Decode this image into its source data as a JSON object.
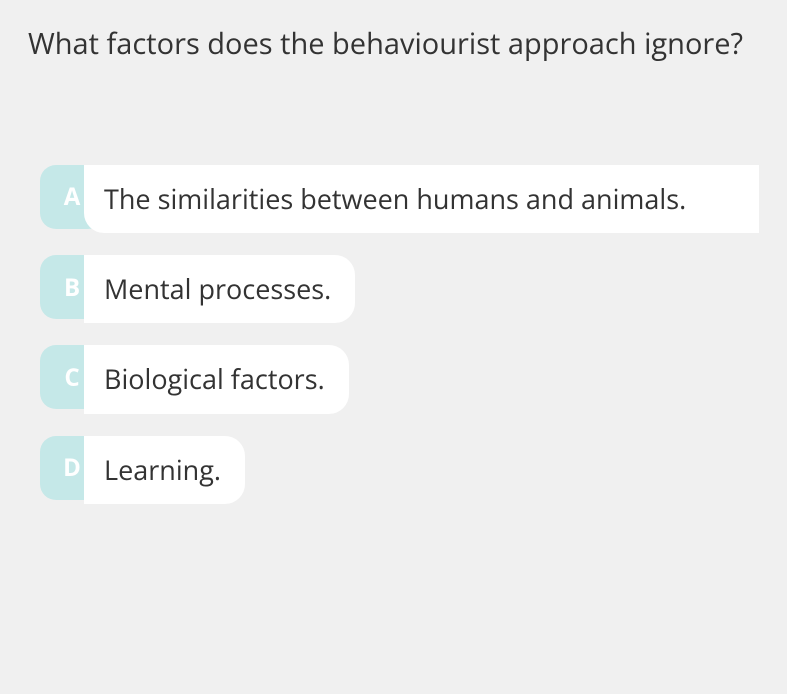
{
  "question": {
    "text": "What factors does the behaviourist approach ignore?"
  },
  "options": [
    {
      "letter": "A",
      "text": "The similarities between humans and animals."
    },
    {
      "letter": "B",
      "text": "Mental processes."
    },
    {
      "letter": "C",
      "text": "Biological factors."
    },
    {
      "letter": "D",
      "text": "Learning."
    }
  ],
  "colors": {
    "background": "#f0f0f0",
    "option_letter_bg": "#c5e8e8",
    "option_letter_fg": "#ffffff",
    "option_text_bg": "#ffffff",
    "text_color": "#333333"
  },
  "typography": {
    "question_fontsize": 29,
    "option_fontsize": 27,
    "letter_fontsize": 24
  }
}
